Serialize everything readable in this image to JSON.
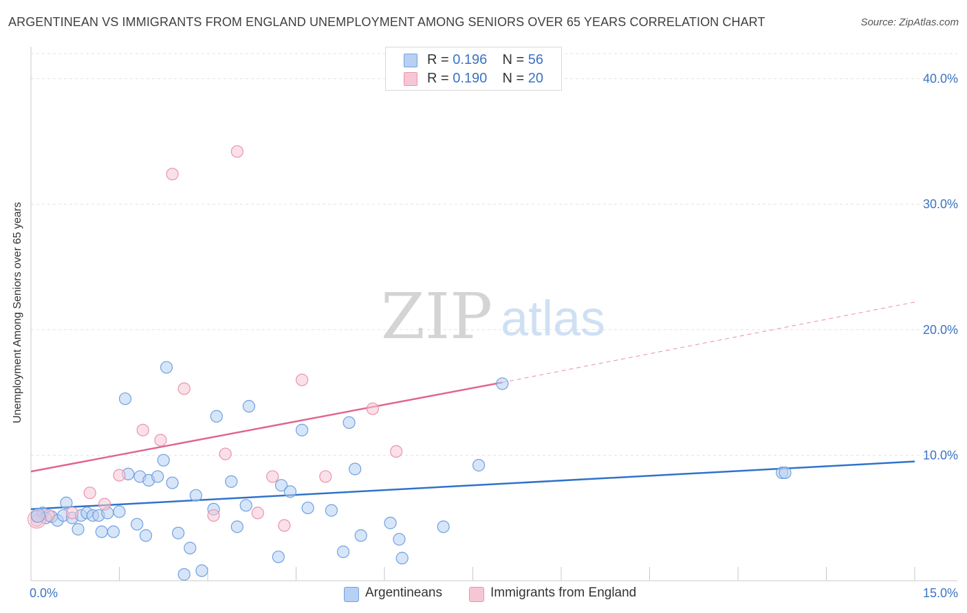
{
  "chart_data": {
    "type": "scatter",
    "title": "ARGENTINEAN VS IMMIGRANTS FROM ENGLAND UNEMPLOYMENT AMONG SENIORS OVER 65 YEARS CORRELATION CHART",
    "source": "Source: ZipAtlas.com",
    "ylabel": "Unemployment Among Seniors over 65 years",
    "xlim": [
      0,
      15
    ],
    "ylim": [
      0,
      42
    ],
    "x_tick_labels": [
      "0.0%",
      "15.0%"
    ],
    "y_ticks": [
      10,
      20,
      30,
      40
    ],
    "y_tick_labels": [
      "10.0%",
      "20.0%",
      "30.0%",
      "40.0%"
    ],
    "watermark": {
      "zip": "ZIP",
      "atlas": "atlas"
    },
    "legend_top": [
      {
        "r_label": "R =",
        "r_value": "0.196",
        "n_label": "N =",
        "n_value": "56"
      },
      {
        "r_label": "R =",
        "r_value": "0.190",
        "n_label": "N =",
        "n_value": "20"
      }
    ],
    "series": [
      {
        "name": "Argentineans",
        "color": "#6fa0e0",
        "fill": "#b7d0f3",
        "line_color": "#2f72c9",
        "trend": {
          "x0": 0,
          "y0": 5.7,
          "x1": 15,
          "y1": 9.5
        },
        "points": [
          [
            0.1,
            5.1
          ],
          [
            0.2,
            5.4
          ],
          [
            0.25,
            5.0
          ],
          [
            0.35,
            5.1
          ],
          [
            0.45,
            4.8
          ],
          [
            0.55,
            5.2
          ],
          [
            0.6,
            6.2
          ],
          [
            0.7,
            5.0
          ],
          [
            0.8,
            4.1
          ],
          [
            0.85,
            5.2
          ],
          [
            0.95,
            5.4
          ],
          [
            1.05,
            5.2
          ],
          [
            1.15,
            5.2
          ],
          [
            1.2,
            3.9
          ],
          [
            1.3,
            5.4
          ],
          [
            1.4,
            3.9
          ],
          [
            1.5,
            5.5
          ],
          [
            1.6,
            14.5
          ],
          [
            1.65,
            8.5
          ],
          [
            1.8,
            4.5
          ],
          [
            1.85,
            8.3
          ],
          [
            1.95,
            3.6
          ],
          [
            2.0,
            8.0
          ],
          [
            2.15,
            8.3
          ],
          [
            2.25,
            9.6
          ],
          [
            2.3,
            17.0
          ],
          [
            2.4,
            7.8
          ],
          [
            2.5,
            3.8
          ],
          [
            2.6,
            0.5
          ],
          [
            2.7,
            2.6
          ],
          [
            2.8,
            6.8
          ],
          [
            2.9,
            0.8
          ],
          [
            3.15,
            13.1
          ],
          [
            3.1,
            5.7
          ],
          [
            3.4,
            7.9
          ],
          [
            3.5,
            4.3
          ],
          [
            3.65,
            6.0
          ],
          [
            3.7,
            13.9
          ],
          [
            4.2,
            1.9
          ],
          [
            4.25,
            7.6
          ],
          [
            4.4,
            7.1
          ],
          [
            4.6,
            12.0
          ],
          [
            4.7,
            5.8
          ],
          [
            5.1,
            5.6
          ],
          [
            5.3,
            2.3
          ],
          [
            5.4,
            12.6
          ],
          [
            5.5,
            8.9
          ],
          [
            5.6,
            3.6
          ],
          [
            6.1,
            4.6
          ],
          [
            6.25,
            3.3
          ],
          [
            6.3,
            1.8
          ],
          [
            7.0,
            4.3
          ],
          [
            7.6,
            9.2
          ],
          [
            8.0,
            15.7
          ],
          [
            12.75,
            8.6
          ],
          [
            12.8,
            8.6
          ]
        ]
      },
      {
        "name": "Immigrants from England",
        "color": "#e893ad",
        "fill": "#f7c6d4",
        "line_color": "#e0668f",
        "trend": {
          "x0": 0,
          "y0": 8.7,
          "x1": 8.0,
          "y1": 15.8
        },
        "trend_ext": {
          "x0": 8.0,
          "y0": 15.8,
          "x1": 15,
          "y1": 22.2
        },
        "points": [
          [
            0.1,
            4.8
          ],
          [
            0.3,
            5.2
          ],
          [
            0.7,
            5.4
          ],
          [
            1.0,
            7.0
          ],
          [
            1.25,
            6.1
          ],
          [
            1.5,
            8.4
          ],
          [
            1.9,
            12.0
          ],
          [
            2.2,
            11.2
          ],
          [
            2.4,
            32.4
          ],
          [
            2.6,
            15.3
          ],
          [
            3.1,
            5.2
          ],
          [
            3.3,
            10.1
          ],
          [
            3.5,
            34.2
          ],
          [
            3.85,
            5.4
          ],
          [
            4.1,
            8.3
          ],
          [
            4.3,
            4.4
          ],
          [
            4.6,
            16.0
          ],
          [
            5.0,
            8.3
          ],
          [
            5.8,
            13.7
          ],
          [
            6.2,
            10.3
          ]
        ]
      }
    ]
  }
}
